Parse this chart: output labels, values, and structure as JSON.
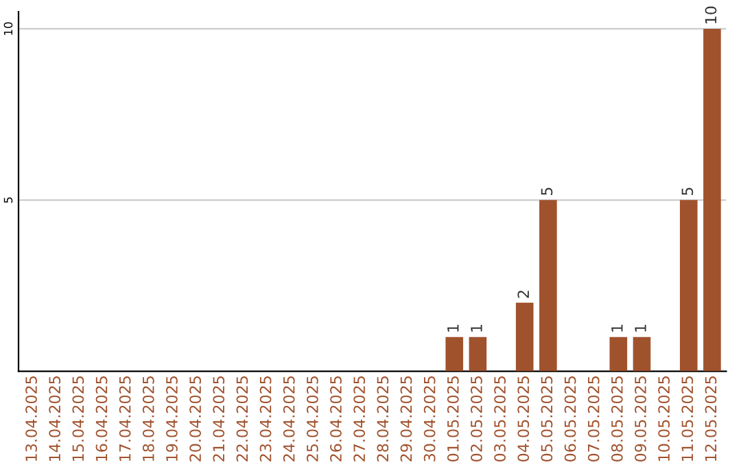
{
  "chart_data": {
    "type": "bar",
    "categories": [
      "13.04.2025",
      "14.04.2025",
      "15.04.2025",
      "16.04.2025",
      "17.04.2025",
      "18.04.2025",
      "19.04.2025",
      "20.04.2025",
      "21.04.2025",
      "22.04.2025",
      "23.04.2025",
      "24.04.2025",
      "25.04.2025",
      "26.04.2025",
      "27.04.2025",
      "28.04.2025",
      "29.04.2025",
      "30.04.2025",
      "01.05.2025",
      "02.05.2025",
      "03.05.2025",
      "04.05.2025",
      "05.05.2025",
      "06.05.2025",
      "07.05.2025",
      "08.05.2025",
      "09.05.2025",
      "10.05.2025",
      "11.05.2025",
      "12.05.2025"
    ],
    "series": [
      {
        "color": "#a0522d",
        "values": [
          0,
          0,
          0,
          0,
          0,
          0,
          0,
          0,
          0,
          0,
          0,
          0,
          0,
          0,
          0,
          0,
          0,
          0,
          1,
          1,
          0,
          2,
          5,
          0,
          0,
          1,
          1,
          0,
          5,
          10
        ],
        "value_labels": [
          null,
          null,
          null,
          null,
          null,
          null,
          null,
          null,
          null,
          null,
          null,
          null,
          null,
          null,
          null,
          null,
          null,
          null,
          "1",
          "1",
          null,
          "2",
          "5",
          null,
          null,
          "1",
          "1",
          null,
          "5",
          "10"
        ]
      }
    ],
    "ylim": [
      0,
      10.5
    ],
    "yticks": [
      5,
      10
    ],
    "grid": "y",
    "legend": false
  }
}
